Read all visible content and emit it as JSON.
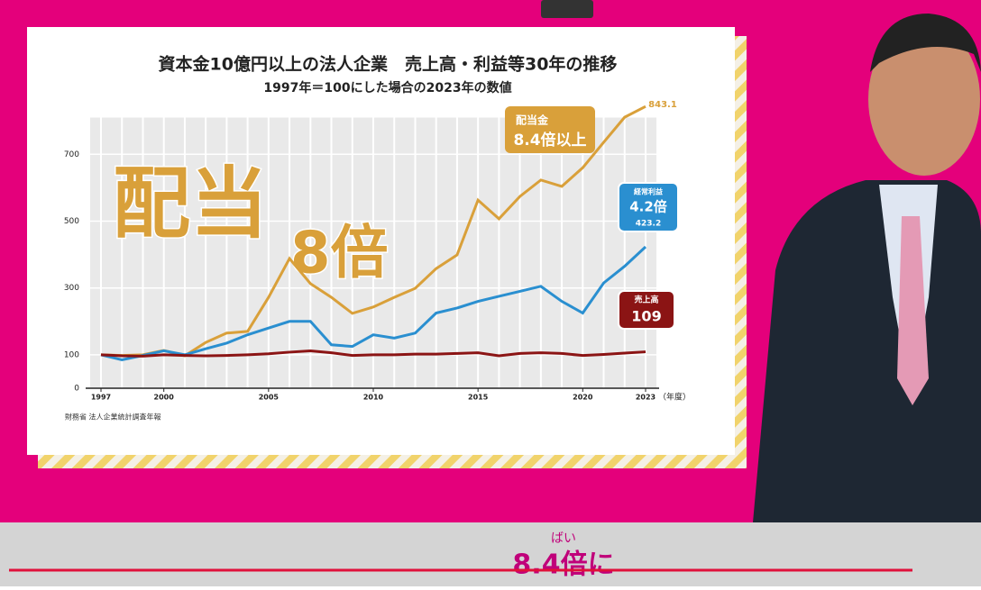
{
  "chart_data": {
    "type": "line",
    "title": "資本金10億円以上の法人企業　売上高・利益等30年の推移",
    "subtitle": "1997年＝100にした場合の2023年の数値",
    "x_label": "（年度）",
    "source": "財務省 法人企業統計調査年報",
    "x": [
      1997,
      1998,
      1999,
      2000,
      2001,
      2002,
      2003,
      2004,
      2005,
      2006,
      2007,
      2008,
      2009,
      2010,
      2011,
      2012,
      2013,
      2014,
      2015,
      2016,
      2017,
      2018,
      2019,
      2020,
      2021,
      2022,
      2023
    ],
    "xlim": [
      1997,
      2023
    ],
    "xticks": [
      1997,
      2000,
      2005,
      2010,
      2015,
      2020,
      2023
    ],
    "ylim": [
      0,
      810
    ],
    "yticks": [
      0,
      100,
      300,
      500,
      700
    ],
    "grid": true,
    "series": [
      {
        "name": "配当金",
        "color": "#d9a03a",
        "values": [
          100,
          98,
          100,
          113,
          97,
          137,
          165,
          170,
          272,
          388,
          313,
          272,
          224,
          243,
          272,
          299,
          358,
          399,
          563,
          507,
          574,
          623,
          604,
          660,
          736,
          811,
          843.1
        ]
      },
      {
        "name": "経常利益",
        "color": "#2a8fd0",
        "values": [
          100,
          85,
          98,
          112,
          100,
          118,
          135,
          160,
          180,
          200,
          200,
          130,
          125,
          160,
          150,
          165,
          225,
          240,
          260,
          275,
          290,
          305,
          260,
          225,
          315,
          365,
          423.2
        ]
      },
      {
        "name": "売上高",
        "color": "#8b1414",
        "values": [
          100,
          97,
          96,
          100,
          98,
          97,
          98,
          100,
          103,
          108,
          112,
          106,
          98,
          100,
          100,
          102,
          102,
          104,
          106,
          97,
          104,
          106,
          104,
          98,
          101,
          105,
          109
        ]
      }
    ],
    "annotations": {
      "dividend_multiple": "8.4倍以上",
      "profit_multiple": "4.2倍",
      "overlay": [
        "配当",
        "8倍"
      ]
    }
  },
  "caption": {
    "ruby": "ばい",
    "text": "8.4倍に"
  }
}
